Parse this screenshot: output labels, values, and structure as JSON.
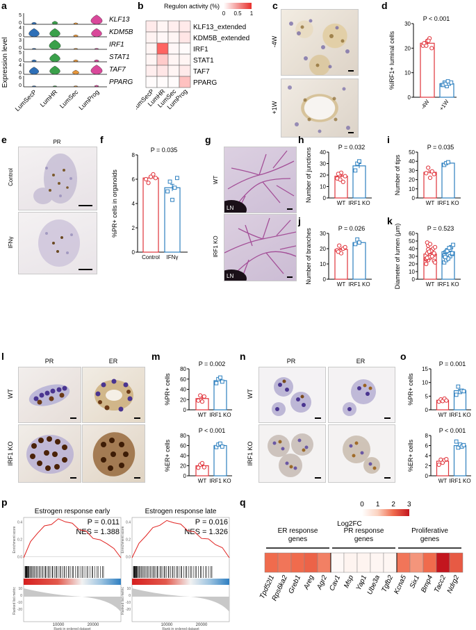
{
  "panel_letters": [
    "a",
    "b",
    "c",
    "d",
    "e",
    "f",
    "g",
    "h",
    "i",
    "j",
    "k",
    "l",
    "m",
    "n",
    "o",
    "p",
    "q"
  ],
  "a": {
    "ylabel": "Expression level",
    "genes": [
      "KLF13",
      "KDM5B",
      "IRF1",
      "STAT1",
      "TAF7",
      "PPARG"
    ],
    "clusters": [
      "LumSecP",
      "LumHR",
      "LumSec",
      "LumProg"
    ],
    "ticks": [
      "0",
      "5",
      "0",
      "4",
      "0",
      "3",
      "0",
      "5",
      "0",
      "4",
      "0",
      "6"
    ],
    "colors": [
      "#2e6fb7",
      "#3aa04a",
      "#e6963a",
      "#d9489a"
    ]
  },
  "b": {
    "title": "Regulon activity (%)",
    "scale_ticks": [
      "0",
      "0.5",
      "1"
    ],
    "rows": [
      "KLF13_extended",
      "KDM5B_extended",
      "IRF1",
      "STAT1",
      "TAF7",
      "PPARG"
    ],
    "cols": [
      "LumSecP",
      "LumHR",
      "LumSec",
      "LumProg"
    ]
  },
  "c": {
    "labels": [
      "-4W",
      "+1W"
    ]
  },
  "d": {
    "ylabel": "%IRF1+  luminal cells",
    "pvalue": "P < 0.001",
    "yticks": [
      "0",
      "10",
      "20",
      "30"
    ],
    "groups": [
      "-4W",
      "+1W"
    ]
  },
  "e": {
    "title": "PR",
    "labels": [
      "Control",
      "IFNγ"
    ]
  },
  "f": {
    "ylabel": "%PR+ cells in organoids",
    "pvalue": "P = 0.035",
    "yticks": [
      "0",
      "2",
      "4",
      "6",
      "8"
    ],
    "groups": [
      "Control",
      "IFNγ"
    ]
  },
  "g": {
    "labels": [
      "WT",
      "IRF1 KO"
    ],
    "ln": "LN"
  },
  "h": {
    "ylabel": "Number of junctions",
    "pvalue": "P = 0.032",
    "yticks": [
      "0",
      "10",
      "20",
      "30",
      "40"
    ],
    "groups": [
      "WT",
      "IRF1 KO"
    ]
  },
  "i": {
    "ylabel": "Number of tips",
    "pvalue": "P = 0.035",
    "yticks": [
      "0",
      "10",
      "20",
      "30",
      "40",
      "50"
    ],
    "groups": [
      "WT",
      "IRF1 KO"
    ]
  },
  "j": {
    "ylabel": "Number of branches",
    "pvalue": "P = 0.026",
    "yticks": [
      "0",
      "10",
      "20",
      "30"
    ],
    "groups": [
      "WT",
      "IRF1 KO"
    ]
  },
  "k": {
    "ylabel": "Diameter of lumen (μm)",
    "pvalue": "P = 0.523",
    "yticks": [
      "0",
      "10",
      "20",
      "30",
      "40",
      "50",
      "60"
    ],
    "groups": [
      "WT",
      "IRF1 KO"
    ]
  },
  "l": {
    "col_titles": [
      "PR",
      "ER"
    ],
    "row_labels": [
      "WT",
      "IRF1 KO"
    ]
  },
  "m": {
    "top": {
      "ylabel": "%PR+ cells",
      "pvalue": "P = 0.002",
      "yticks": [
        "0",
        "20",
        "40",
        "60",
        "80"
      ]
    },
    "bottom": {
      "ylabel": "%ER+ cells",
      "pvalue": "P < 0.001",
      "yticks": [
        "0",
        "20",
        "40",
        "60",
        "80"
      ]
    },
    "groups": [
      "WT",
      "IRF1 KO"
    ]
  },
  "n": {
    "col_titles": [
      "PR",
      "ER"
    ],
    "row_labels": [
      "WT",
      "IRF1 KO"
    ]
  },
  "o": {
    "top": {
      "ylabel": "%PR+ cells",
      "pvalue": "P = 0.001",
      "yticks": [
        "0",
        "5",
        "10",
        "15"
      ]
    },
    "bottom": {
      "ylabel": "%ER+ cells",
      "pvalue": "P < 0.001",
      "yticks": [
        "0",
        "2",
        "4",
        "6",
        "8"
      ]
    },
    "groups": [
      "WT",
      "IRF1 KO"
    ]
  },
  "p": {
    "plots": [
      {
        "title": "Estrogen response early",
        "p": "P = 0.011",
        "nes": "NES = 1.388"
      },
      {
        "title": "Estrogen response late",
        "p": "P = 0.016",
        "nes": "NES = 1.326"
      }
    ],
    "ylabel_top": "Enrichment score",
    "ylabel_bottom": "Ranked list metric",
    "xlabel": "Rank in ordered dataset",
    "xticks": [
      "10000",
      "20000"
    ],
    "es_yticks": [
      "0.4",
      "0.2",
      "0.0"
    ],
    "rm_yticks": [
      "10",
      "0",
      "-10",
      "-20"
    ]
  },
  "q": {
    "legend_label": "Log2FC",
    "legend_ticks": [
      "0",
      "1",
      "2",
      "3"
    ],
    "groups": [
      "ER response genes",
      "PR response genes",
      "Proliferative genes"
    ],
    "genes": [
      "Tpd52l1",
      "Rps6ka2",
      "Greb1",
      "Areg",
      "Agr2",
      "Cav1",
      "Msp",
      "Yap1",
      "Ube3a",
      "Tgfb2",
      "Kcna5",
      "Six1",
      "Bmp4",
      "Tacc2",
      "Ndrg2"
    ],
    "values": [
      2.0,
      1.9,
      2.0,
      2.1,
      1.8,
      0.15,
      0.25,
      0.25,
      0.2,
      0.2,
      1.9,
      1.6,
      2.0,
      3.0,
      2.2
    ]
  },
  "chart_data": [
    {
      "type": "bar",
      "title": "",
      "ylabel": "%IRF1+  luminal cells",
      "categories": [
        "-4W",
        "+1W"
      ],
      "values": [
        22,
        5.5
      ],
      "ylim": [
        0,
        30
      ],
      "points": [
        [
          21,
          22,
          23,
          24,
          20,
          22,
          21,
          23
        ],
        [
          5,
          6,
          4.5,
          5.5,
          6,
          5,
          5.5,
          6.5
        ]
      ]
    },
    {
      "type": "bar",
      "ylabel": "%PR+ cells in organoids",
      "categories": [
        "Control",
        "IFNγ"
      ],
      "values": [
        6.1,
        5.3
      ],
      "ylim": [
        0,
        8
      ],
      "points": [
        [
          6.0,
          5.7,
          6.2,
          6.4,
          6.1
        ],
        [
          5.0,
          5.8,
          4.3,
          5.3,
          6.1
        ]
      ]
    },
    {
      "type": "bar",
      "ylabel": "Number of junctions",
      "categories": [
        "WT",
        "IRF1 KO"
      ],
      "values": [
        19,
        28
      ],
      "ylim": [
        0,
        40
      ],
      "points": [
        [
          17,
          20,
          22,
          14,
          19,
          21,
          16
        ],
        [
          24,
          30,
          32
        ]
      ]
    },
    {
      "type": "bar",
      "ylabel": "Number of tips",
      "categories": [
        "WT",
        "IRF1 KO"
      ],
      "values": [
        28,
        38
      ],
      "ylim": [
        0,
        50
      ],
      "points": [
        [
          27,
          33,
          22,
          29,
          26
        ],
        [
          36,
          38,
          39
        ]
      ]
    },
    {
      "type": "bar",
      "ylabel": "Number of branches",
      "categories": [
        "WT",
        "IRF1 KO"
      ],
      "values": [
        19.5,
        24
      ],
      "ylim": [
        0,
        30
      ],
      "points": [
        [
          19,
          22,
          17,
          20,
          21,
          18
        ],
        [
          23,
          26,
          24
        ]
      ]
    },
    {
      "type": "bar",
      "ylabel": "Diameter of lumen (μm)",
      "categories": [
        "WT",
        "IRF1 KO"
      ],
      "values": [
        33,
        36
      ],
      "ylim": [
        0,
        60
      ],
      "points": [
        [
          20,
          25,
          28,
          30,
          32,
          34,
          36,
          38,
          40,
          42,
          26,
          44,
          31,
          35,
          24,
          48,
          29,
          37,
          33,
          22,
          27,
          39,
          46,
          30,
          34,
          28,
          36
        ],
        [
          22,
          25,
          28,
          30,
          33,
          35,
          38,
          40,
          42,
          45,
          31,
          36,
          27,
          39,
          34,
          29,
          37,
          41
        ]
      ]
    },
    {
      "type": "bar",
      "ylabel": "%PR+ cells",
      "categories": [
        "WT",
        "IRF1 KO"
      ],
      "values": [
        22,
        57
      ],
      "ylim": [
        0,
        80
      ],
      "points": [
        [
          18,
          28,
          16,
          26
        ],
        [
          52,
          60,
          63,
          55
        ]
      ]
    },
    {
      "type": "bar",
      "ylabel": "%ER+ cells",
      "categories": [
        "WT",
        "IRF1 KO"
      ],
      "values": [
        20,
        60
      ],
      "ylim": [
        0,
        80
      ],
      "points": [
        [
          16,
          22,
          25,
          17
        ],
        [
          57,
          62,
          64,
          58
        ]
      ]
    },
    {
      "type": "bar",
      "ylabel": "%PR+ cells",
      "categories": [
        "WT",
        "IRF1 KO"
      ],
      "values": [
        3.5,
        7
      ],
      "ylim": [
        0,
        15
      ],
      "points": [
        [
          3,
          3.8,
          3.2,
          4.1,
          3.4
        ],
        [
          5.5,
          8.5,
          6.5,
          7,
          6.8
        ]
      ]
    },
    {
      "type": "bar",
      "ylabel": "%ER+ cells",
      "categories": [
        "WT",
        "IRF1 KO"
      ],
      "values": [
        2.9,
        6
      ],
      "ylim": [
        0,
        8
      ],
      "points": [
        [
          2.2,
          3.2,
          2.6,
          3.1,
          3.3
        ],
        [
          6.8,
          5.6,
          6.2,
          5.8,
          6.1
        ]
      ]
    },
    {
      "type": "heatmap",
      "title": "Regulon activity (%)",
      "rows": [
        "KLF13_extended",
        "KDM5B_extended",
        "IRF1",
        "STAT1",
        "TAF7",
        "PPARG"
      ],
      "cols": [
        "LumSecP",
        "LumHR",
        "LumSec",
        "LumProg"
      ],
      "values": [
        [
          0.1,
          0.05,
          0.08,
          0.1
        ],
        [
          0.06,
          0.04,
          0.05,
          0.12
        ],
        [
          0.05,
          0.75,
          0.04,
          0.02
        ],
        [
          0.05,
          0.25,
          0.05,
          0.05
        ],
        [
          0.08,
          0.12,
          0.05,
          0.1
        ],
        [
          0.02,
          0.02,
          0.02,
          0.3
        ]
      ]
    },
    {
      "type": "heatmap",
      "title": "",
      "legend": "Log2FC",
      "categories": [
        "Tpd52l1",
        "Rps6ka2",
        "Greb1",
        "Areg",
        "Agr2",
        "Cav1",
        "Msp",
        "Yap1",
        "Ube3a",
        "Tgfb2",
        "Kcna5",
        "Six1",
        "Bmp4",
        "Tacc2",
        "Ndrg2"
      ],
      "values": [
        2.0,
        1.9,
        2.0,
        2.1,
        1.8,
        0.15,
        0.25,
        0.25,
        0.2,
        0.2,
        1.9,
        1.6,
        2.0,
        3.0,
        2.2
      ]
    },
    {
      "type": "line",
      "title": "Estrogen response early",
      "xlabel": "Rank in ordered dataset",
      "ylabel": "Enrichment score",
      "x": [
        0,
        2000,
        4000,
        6000,
        8000,
        10000,
        12000,
        14000,
        16000,
        18000,
        20000,
        22000,
        24000,
        26000,
        28000
      ],
      "y": [
        0.0,
        0.16,
        0.28,
        0.34,
        0.38,
        0.42,
        0.41,
        0.37,
        0.32,
        0.28,
        0.22,
        0.18,
        0.16,
        0.08,
        0.0
      ]
    },
    {
      "type": "line",
      "title": "Estrogen response late",
      "xlabel": "Rank in ordered dataset",
      "ylabel": "Enrichment score",
      "x": [
        0,
        2000,
        4000,
        6000,
        8000,
        10000,
        12000,
        14000,
        16000,
        18000,
        20000,
        22000,
        24000,
        26000,
        28000
      ],
      "y": [
        0.0,
        0.14,
        0.25,
        0.32,
        0.37,
        0.4,
        0.4,
        0.36,
        0.31,
        0.27,
        0.22,
        0.19,
        0.15,
        0.09,
        0.0
      ]
    }
  ]
}
